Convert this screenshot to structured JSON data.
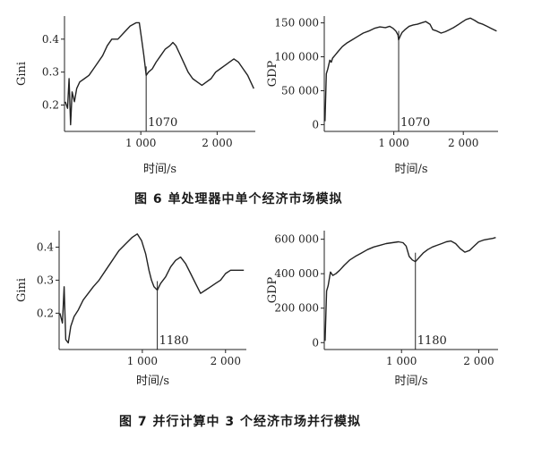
{
  "captions": {
    "fig6": "图 6    单处理器中单个经济市场模拟",
    "fig7": "图 7    并行计算中 3 个经济市场并行模拟"
  },
  "chart_data": [
    {
      "id": "fig6-gini",
      "type": "line",
      "ylabel": "Gini",
      "xlabel": "时间/s",
      "xlim": [
        0,
        2500
      ],
      "ylim": [
        0.12,
        0.47
      ],
      "xticks": [
        1000,
        2000
      ],
      "xtick_labels": [
        "1 000",
        "2 000"
      ],
      "yticks": [
        0.2,
        0.3,
        0.4
      ],
      "ytick_labels": [
        "0.2",
        "0.3",
        "0.4"
      ],
      "marker": {
        "x": 1070,
        "label": "1070"
      },
      "series": [
        {
          "x": [
            10,
            40,
            60,
            80,
            100,
            130,
            160,
            200,
            260,
            320,
            380,
            440,
            500,
            560,
            620,
            700,
            780,
            860,
            940,
            980,
            1010,
            1040,
            1070,
            1100,
            1150,
            1200,
            1260,
            1320,
            1380,
            1420,
            1460,
            1500,
            1560,
            1620,
            1680,
            1740,
            1800,
            1860,
            1920,
            1980,
            2040,
            2100,
            2160,
            2220,
            2280,
            2340,
            2400,
            2440,
            2480
          ],
          "y": [
            0.21,
            0.19,
            0.28,
            0.14,
            0.24,
            0.21,
            0.25,
            0.27,
            0.28,
            0.29,
            0.31,
            0.33,
            0.35,
            0.38,
            0.4,
            0.4,
            0.42,
            0.44,
            0.45,
            0.45,
            0.4,
            0.35,
            0.29,
            0.3,
            0.31,
            0.33,
            0.35,
            0.37,
            0.38,
            0.39,
            0.38,
            0.36,
            0.33,
            0.3,
            0.28,
            0.27,
            0.26,
            0.27,
            0.28,
            0.3,
            0.31,
            0.32,
            0.33,
            0.34,
            0.33,
            0.31,
            0.29,
            0.27,
            0.25
          ]
        }
      ]
    },
    {
      "id": "fig6-gdp",
      "type": "line",
      "ylabel": "GDP",
      "xlabel": "时间/s",
      "xlim": [
        0,
        2500
      ],
      "ylim": [
        -10000,
        160000
      ],
      "xticks": [
        1000,
        2000
      ],
      "xtick_labels": [
        "1 000",
        "2 000"
      ],
      "yticks": [
        0,
        50000,
        100000,
        150000
      ],
      "ytick_labels": [
        "0",
        "50 000",
        "100 000",
        "150 000"
      ],
      "marker": {
        "x": 1070,
        "label": "1070"
      },
      "series": [
        {
          "x": [
            10,
            30,
            50,
            80,
            100,
            120,
            160,
            200,
            260,
            320,
            400,
            480,
            560,
            640,
            720,
            800,
            880,
            940,
            990,
            1030,
            1060,
            1070,
            1090,
            1120,
            1160,
            1220,
            1280,
            1340,
            1400,
            1460,
            1520,
            1560,
            1620,
            1680,
            1740,
            1800,
            1860,
            1920,
            1980,
            2040,
            2100,
            2160,
            2220,
            2280,
            2340,
            2400,
            2440,
            2480
          ],
          "y": [
            5000,
            75000,
            82000,
            95000,
            92000,
            98000,
            103000,
            108000,
            115000,
            120000,
            125000,
            130000,
            135000,
            138000,
            142000,
            144000,
            143000,
            145000,
            142000,
            138000,
            132000,
            125000,
            130000,
            136000,
            140000,
            145000,
            147000,
            148000,
            150000,
            152000,
            148000,
            140000,
            138000,
            135000,
            137000,
            140000,
            143000,
            147000,
            151000,
            155000,
            157000,
            154000,
            150000,
            148000,
            145000,
            142000,
            140000,
            138000
          ]
        }
      ]
    },
    {
      "id": "fig7-gini",
      "type": "line",
      "ylabel": "Gini",
      "xlabel": "时间/s",
      "xlim": [
        0,
        2250
      ],
      "ylim": [
        0.09,
        0.45
      ],
      "xticks": [
        1000,
        2000
      ],
      "xtick_labels": [
        "1 000",
        "2 000"
      ],
      "yticks": [
        0.2,
        0.3,
        0.4
      ],
      "ytick_labels": [
        "0.2",
        "0.3",
        "0.4"
      ],
      "marker": {
        "x": 1180,
        "label": "1180"
      },
      "series": [
        {
          "x": [
            10,
            40,
            60,
            80,
            110,
            140,
            180,
            230,
            290,
            350,
            410,
            480,
            560,
            640,
            720,
            800,
            880,
            940,
            990,
            1040,
            1080,
            1110,
            1140,
            1180,
            1220,
            1280,
            1340,
            1400,
            1460,
            1520,
            1580,
            1640,
            1700,
            1760,
            1820,
            1880,
            1940,
            2000,
            2060,
            2120,
            2180,
            2220
          ],
          "y": [
            0.2,
            0.17,
            0.28,
            0.12,
            0.11,
            0.16,
            0.19,
            0.21,
            0.24,
            0.26,
            0.28,
            0.3,
            0.33,
            0.36,
            0.39,
            0.41,
            0.43,
            0.44,
            0.42,
            0.38,
            0.33,
            0.3,
            0.28,
            0.27,
            0.29,
            0.31,
            0.34,
            0.36,
            0.37,
            0.35,
            0.32,
            0.29,
            0.26,
            0.27,
            0.28,
            0.29,
            0.3,
            0.32,
            0.33,
            0.33,
            0.33,
            0.33
          ]
        }
      ]
    },
    {
      "id": "fig7-gdp",
      "type": "line",
      "ylabel": "GDP",
      "xlabel": "时间/s",
      "xlim": [
        0,
        2250
      ],
      "ylim": [
        -40000,
        650000
      ],
      "xticks": [
        1000,
        2000
      ],
      "xtick_labels": [
        "1 000",
        "2 000"
      ],
      "yticks": [
        0,
        200000,
        400000,
        600000
      ],
      "ytick_labels": [
        "0",
        "200 000",
        "400 000",
        "600 000"
      ],
      "marker": {
        "x": 1180,
        "label": "1180"
      },
      "series": [
        {
          "x": [
            10,
            30,
            50,
            80,
            110,
            150,
            200,
            260,
            330,
            400,
            480,
            560,
            640,
            720,
            800,
            880,
            960,
            1020,
            1060,
            1100,
            1140,
            1180,
            1220,
            1280,
            1340,
            1400,
            1460,
            1520,
            1580,
            1640,
            1700,
            1760,
            1820,
            1880,
            1940,
            2000,
            2060,
            2120,
            2180,
            2220
          ],
          "y": [
            10000,
            300000,
            330000,
            410000,
            390000,
            400000,
            420000,
            450000,
            480000,
            500000,
            520000,
            540000,
            555000,
            565000,
            575000,
            580000,
            585000,
            580000,
            560000,
            500000,
            480000,
            470000,
            490000,
            520000,
            540000,
            555000,
            565000,
            575000,
            585000,
            590000,
            575000,
            545000,
            525000,
            535000,
            560000,
            585000,
            595000,
            600000,
            605000,
            610000
          ]
        }
      ]
    }
  ]
}
